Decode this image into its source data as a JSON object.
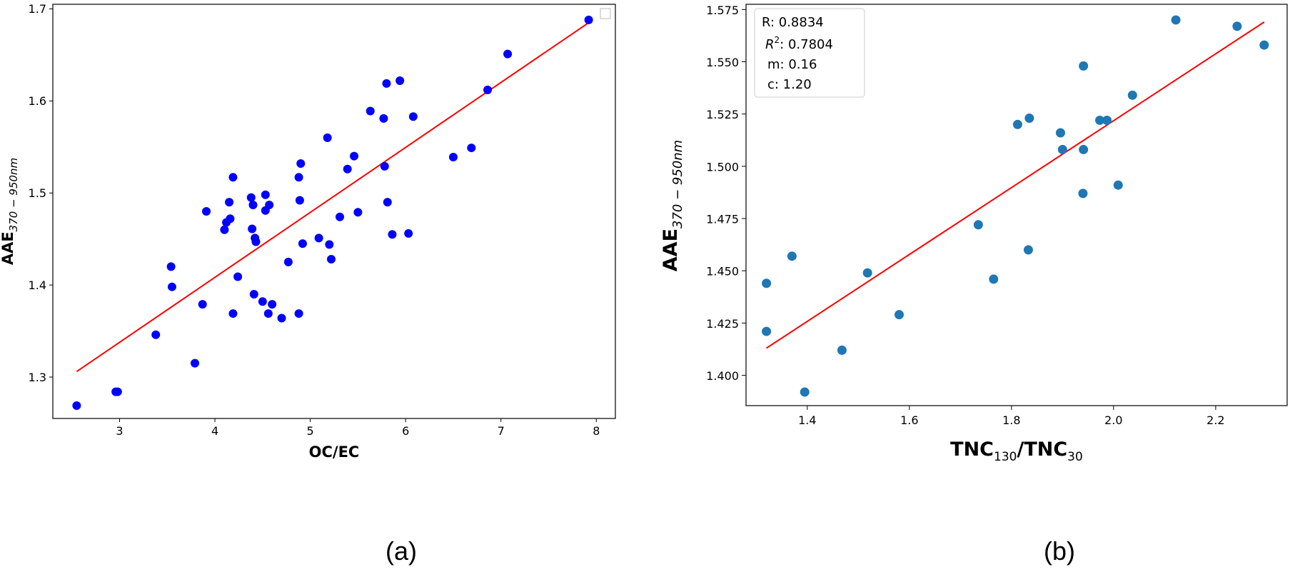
{
  "chart_data": [
    {
      "id": "a",
      "type": "scatter",
      "caption": "(a)",
      "xlabel": "OC/EC",
      "ylabel_main": "AAE",
      "ylabel_sub": "370 − 950nm",
      "xlim": [
        2.3,
        8.2
      ],
      "ylim": [
        1.255,
        1.705
      ],
      "xticks": [
        3,
        4,
        5,
        6,
        7,
        8
      ],
      "yticks": [
        1.3,
        1.4,
        1.5,
        1.6,
        1.7
      ],
      "ytick_labels": [
        "1.3",
        "1.4",
        "1.5",
        "1.6",
        "1.7"
      ],
      "point_color": "#0000ff",
      "fit_color": "#ff0000",
      "fit_line": {
        "x1": 2.55,
        "y1": 1.306,
        "x2": 7.92,
        "y2": 1.685
      },
      "points": [
        [
          2.55,
          1.269
        ],
        [
          2.96,
          1.284
        ],
        [
          2.98,
          1.284
        ],
        [
          3.38,
          1.346
        ],
        [
          3.54,
          1.42
        ],
        [
          3.55,
          1.398
        ],
        [
          3.79,
          1.315
        ],
        [
          3.87,
          1.379
        ],
        [
          3.91,
          1.48
        ],
        [
          4.1,
          1.46
        ],
        [
          4.12,
          1.468
        ],
        [
          4.15,
          1.49
        ],
        [
          4.16,
          1.472
        ],
        [
          4.19,
          1.517
        ],
        [
          4.19,
          1.369
        ],
        [
          4.24,
          1.409
        ],
        [
          4.38,
          1.495
        ],
        [
          4.39,
          1.461
        ],
        [
          4.4,
          1.487
        ],
        [
          4.41,
          1.39
        ],
        [
          4.42,
          1.451
        ],
        [
          4.43,
          1.447
        ],
        [
          4.5,
          1.382
        ],
        [
          4.53,
          1.498
        ],
        [
          4.53,
          1.481
        ],
        [
          4.56,
          1.369
        ],
        [
          4.57,
          1.487
        ],
        [
          4.6,
          1.379
        ],
        [
          4.7,
          1.364
        ],
        [
          4.77,
          1.425
        ],
        [
          4.88,
          1.517
        ],
        [
          4.88,
          1.369
        ],
        [
          4.89,
          1.492
        ],
        [
          4.9,
          1.532
        ],
        [
          4.92,
          1.445
        ],
        [
          5.09,
          1.451
        ],
        [
          5.18,
          1.56
        ],
        [
          5.2,
          1.444
        ],
        [
          5.22,
          1.428
        ],
        [
          5.31,
          1.474
        ],
        [
          5.39,
          1.526
        ],
        [
          5.46,
          1.54
        ],
        [
          5.5,
          1.479
        ],
        [
          5.63,
          1.589
        ],
        [
          5.77,
          1.581
        ],
        [
          5.78,
          1.529
        ],
        [
          5.8,
          1.619
        ],
        [
          5.81,
          1.49
        ],
        [
          5.86,
          1.455
        ],
        [
          5.94,
          1.622
        ],
        [
          6.03,
          1.456
        ],
        [
          6.08,
          1.583
        ],
        [
          6.5,
          1.539
        ],
        [
          6.69,
          1.549
        ],
        [
          6.86,
          1.612
        ],
        [
          7.07,
          1.651
        ],
        [
          7.92,
          1.688
        ]
      ]
    },
    {
      "id": "b",
      "type": "scatter",
      "caption": "(b)",
      "xlabel_main": "TNC",
      "xlabel_sub1": "130",
      "xlabel_mid": "/TNC",
      "xlabel_sub2": "30",
      "ylabel_main": "AAE",
      "ylabel_sub": "370 − 950nm",
      "xlim": [
        1.28,
        2.34
      ],
      "ylim": [
        1.3855,
        1.5775
      ],
      "xticks": [
        1.4,
        1.6,
        1.8,
        2.0,
        2.2
      ],
      "xtick_labels": [
        "1.4",
        "1.6",
        "1.8",
        "2.0",
        "2.2"
      ],
      "yticks": [
        1.4,
        1.425,
        1.45,
        1.475,
        1.5,
        1.525,
        1.55,
        1.575
      ],
      "ytick_labels": [
        "1.400",
        "1.425",
        "1.450",
        "1.475",
        "1.500",
        "1.525",
        "1.550",
        "1.575"
      ],
      "point_color": "#1f77b4",
      "fit_color": "#ff0000",
      "fit_line": {
        "x1": 1.32,
        "y1": 1.413,
        "x2": 2.295,
        "y2": 1.569
      },
      "legend": {
        "r": "R: 0.8834",
        "r2_label": "R",
        "r2_sup": "2",
        "r2_value": ": 0.7804",
        "m": "m: 0.16",
        "c": "c: 1.20"
      },
      "points": [
        [
          1.32,
          1.444
        ],
        [
          1.32,
          1.421
        ],
        [
          1.37,
          1.457
        ],
        [
          1.395,
          1.392
        ],
        [
          1.468,
          1.412
        ],
        [
          1.518,
          1.449
        ],
        [
          1.58,
          1.429
        ],
        [
          1.735,
          1.472
        ],
        [
          1.765,
          1.446
        ],
        [
          1.812,
          1.52
        ],
        [
          1.833,
          1.46
        ],
        [
          1.835,
          1.523
        ],
        [
          1.896,
          1.516
        ],
        [
          1.9,
          1.508
        ],
        [
          1.94,
          1.487
        ],
        [
          1.941,
          1.548
        ],
        [
          1.941,
          1.508
        ],
        [
          1.973,
          1.522
        ],
        [
          1.987,
          1.522
        ],
        [
          2.009,
          1.491
        ],
        [
          2.037,
          1.534
        ],
        [
          2.122,
          1.57
        ],
        [
          2.242,
          1.567
        ],
        [
          2.295,
          1.558
        ]
      ]
    }
  ]
}
